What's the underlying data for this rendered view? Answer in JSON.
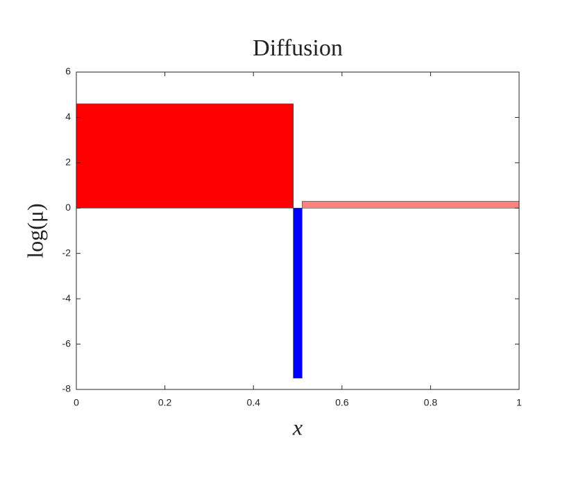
{
  "chart_data": {
    "type": "bar",
    "title": "Diffusion",
    "xlabel": "x",
    "ylabel": "log(μ)",
    "bars": [
      {
        "x": [
          0,
          0.49
        ],
        "value": 4.6,
        "color": "#ff0000"
      },
      {
        "x": [
          0.49,
          0.51
        ],
        "value": -7.5,
        "color": "#0000ff"
      },
      {
        "x": [
          0.51,
          1
        ],
        "value": 0.3,
        "color": "#ff8080"
      }
    ],
    "xlim": [
      0,
      1
    ],
    "xticks": [
      0,
      0.2,
      0.4,
      0.6,
      0.8,
      1
    ],
    "ylim": [
      -8,
      6
    ],
    "yticks": [
      -8,
      -6,
      -4,
      -2,
      0,
      2,
      4,
      6
    ]
  }
}
